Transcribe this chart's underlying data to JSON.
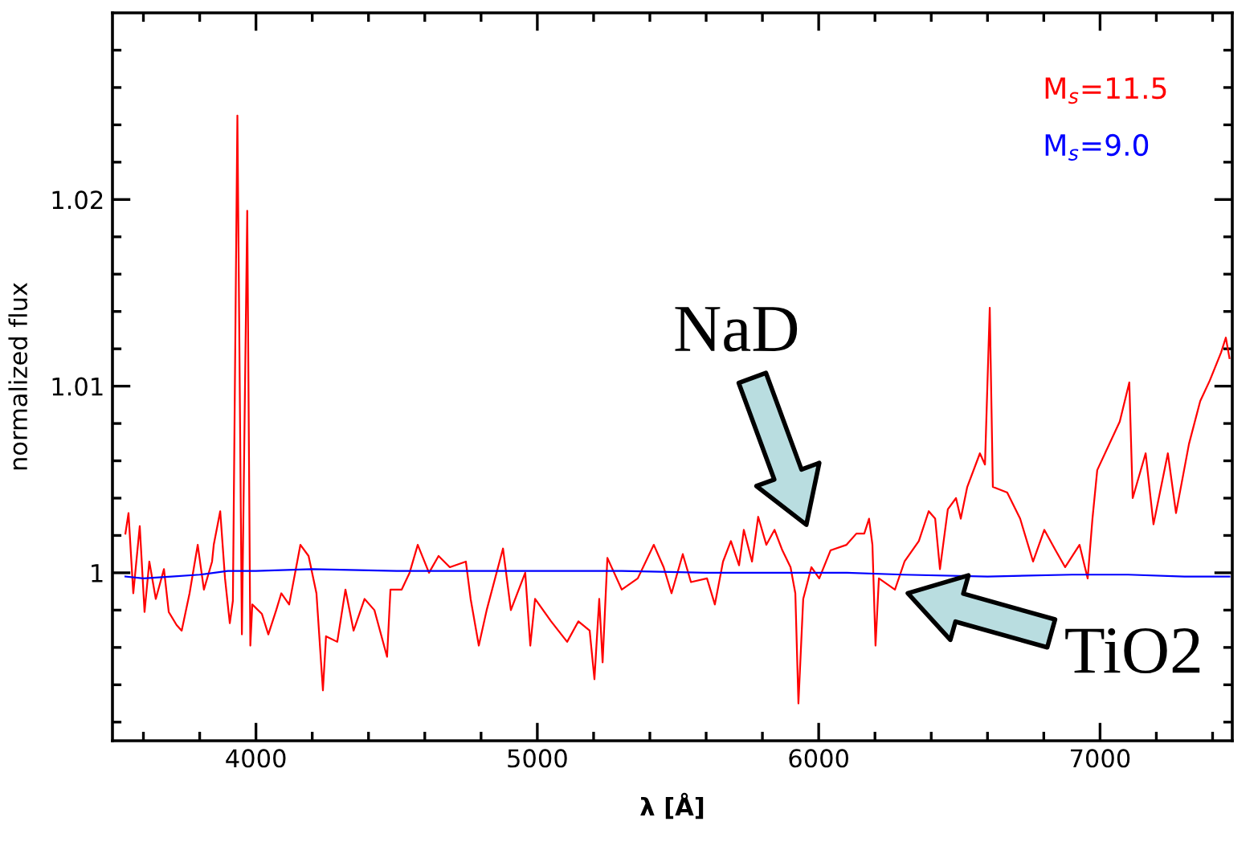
{
  "chart_data": {
    "type": "line",
    "xlabel": "λ [Å]",
    "ylabel": "normalized flux",
    "xlim": [
      3490,
      7470
    ],
    "ylim": [
      0.991,
      1.03
    ],
    "xticks": [
      {
        "value": 3600,
        "label": null
      },
      {
        "value": 3800,
        "label": null
      },
      4000,
      {
        "value": 4200,
        "label": null
      },
      {
        "value": 4400,
        "label": null
      },
      {
        "value": 4600,
        "label": null
      },
      {
        "value": 4800,
        "label": null
      },
      5000,
      {
        "value": 5200,
        "label": null
      },
      {
        "value": 5400,
        "label": null
      },
      {
        "value": 5600,
        "label": null
      },
      {
        "value": 5800,
        "label": null
      },
      6000,
      {
        "value": 6200,
        "label": null
      },
      {
        "value": 6400,
        "label": null
      },
      {
        "value": 6600,
        "label": null
      },
      {
        "value": 6800,
        "label": null
      },
      7000,
      {
        "value": 7200,
        "label": null
      },
      {
        "value": 7400,
        "label": null
      }
    ],
    "yticks": [
      {
        "value": 0.992,
        "label": null
      },
      {
        "value": 0.994,
        "label": null
      },
      {
        "value": 0.996,
        "label": null
      },
      {
        "value": 0.998,
        "label": null
      },
      1,
      {
        "value": 1.002,
        "label": null
      },
      {
        "value": 1.004,
        "label": null
      },
      {
        "value": 1.006,
        "label": null
      },
      {
        "value": 1.008,
        "label": null
      },
      1.01,
      {
        "value": 1.012,
        "label": null
      },
      {
        "value": 1.014,
        "label": null
      },
      {
        "value": 1.016,
        "label": null
      },
      {
        "value": 1.018,
        "label": null
      },
      1.02,
      {
        "value": 1.022,
        "label": null
      },
      {
        "value": 1.024,
        "label": null
      },
      {
        "value": 1.026,
        "label": null
      },
      {
        "value": 1.028,
        "label": null
      }
    ],
    "grid": false,
    "legend": "top right",
    "marker": "none",
    "line_style": "solid",
    "series": [
      {
        "name": "M$_{s}$=11.5",
        "color": "#ff0000",
        "x": [
          3536,
          3547,
          3564,
          3587,
          3604,
          3621,
          3644,
          3673,
          3690,
          3718,
          3736,
          3764,
          3793,
          3815,
          3844,
          3850,
          3873,
          3890,
          3907,
          3918,
          3934,
          3950,
          3969,
          3980,
          3987,
          4021,
          4044,
          4072,
          4090,
          4118,
          4158,
          4187,
          4215,
          4238,
          4249,
          4289,
          4318,
          4347,
          4386,
          4421,
          4466,
          4478,
          4518,
          4546,
          4575,
          4615,
          4649,
          4689,
          4746,
          4763,
          4792,
          4820,
          4878,
          4906,
          4957,
          4975,
          4992,
          5049,
          5106,
          5146,
          5186,
          5203,
          5220,
          5232,
          5249,
          5300,
          5357,
          5414,
          5449,
          5477,
          5517,
          5546,
          5603,
          5631,
          5660,
          5688,
          5717,
          5734,
          5763,
          5785,
          5814,
          5843,
          5871,
          5900,
          5917,
          5928,
          5945,
          5974,
          6002,
          6042,
          6099,
          6134,
          6162,
          6179,
          6191,
          6202,
          6214,
          6271,
          6305,
          6356,
          6391,
          6414,
          6431,
          6459,
          6488,
          6505,
          6528,
          6573,
          6591,
          6608,
          6619,
          6670,
          6716,
          6762,
          6802,
          6842,
          6876,
          6927,
          6956,
          6973,
          6990,
          7070,
          7104,
          7116,
          7162,
          7190,
          7241,
          7270,
          7316,
          7356,
          7390,
          7430,
          7447,
          7460
        ],
        "values": [
          1.0021,
          1.0032,
          0.9989,
          1.0025,
          0.9979,
          1.0006,
          0.9986,
          1.0002,
          0.9979,
          0.9972,
          0.9969,
          0.9989,
          1.0015,
          0.9991,
          1.0006,
          1.0015,
          1.0033,
          0.9997,
          0.9973,
          0.9985,
          1.0245,
          0.9967,
          1.0194,
          0.9961,
          0.9983,
          0.9978,
          0.9967,
          0.998,
          0.9989,
          0.9983,
          1.0015,
          1.0009,
          0.9989,
          0.9937,
          0.9966,
          0.9963,
          0.9991,
          0.9969,
          0.9986,
          0.998,
          0.9955,
          0.9991,
          0.9991,
          1.0,
          1.0015,
          1.0,
          1.0009,
          1.0003,
          1.0006,
          0.9986,
          0.9961,
          0.998,
          1.0013,
          0.998,
          1.0,
          0.9961,
          0.9986,
          0.9974,
          0.9963,
          0.9974,
          0.9969,
          0.9943,
          0.9986,
          0.9952,
          1.0008,
          0.9991,
          0.9997,
          1.0015,
          1.0003,
          0.9989,
          1.001,
          0.9995,
          0.9997,
          0.9983,
          1.0006,
          1.0017,
          1.0004,
          1.0023,
          1.0006,
          1.003,
          1.0015,
          1.0023,
          1.0012,
          1.0003,
          0.9989,
          0.993,
          0.9986,
          1.0003,
          0.9997,
          1.0012,
          1.0015,
          1.0021,
          1.0021,
          1.0029,
          1.0015,
          0.9961,
          0.9997,
          0.9991,
          1.0006,
          1.0017,
          1.0033,
          1.0029,
          1.0002,
          1.0034,
          1.004,
          1.0029,
          1.0046,
          1.0064,
          1.0058,
          1.0142,
          1.0046,
          1.0043,
          1.0029,
          1.0006,
          1.0023,
          1.0012,
          1.0003,
          1.0015,
          0.9997,
          1.0029,
          1.0055,
          1.0081,
          1.0102,
          1.004,
          1.0064,
          1.0026,
          1.0064,
          1.0032,
          1.0069,
          1.0092,
          1.0103,
          1.0118,
          1.0126,
          1.0115
        ]
      },
      {
        "name": "M$_{s}$=9.0",
        "color": "#0000ff",
        "x": [
          3536,
          3600,
          3700,
          3800,
          3900,
          4000,
          4200,
          4500,
          4800,
          5000,
          5300,
          5600,
          5900,
          6100,
          6300,
          6600,
          6900,
          7100,
          7300,
          7460
        ],
        "values": [
          0.9998,
          0.9997,
          0.9998,
          0.9999,
          1.0001,
          1.0001,
          1.0002,
          1.0001,
          1.0001,
          1.0001,
          1.0001,
          1.0,
          1.0,
          1.0,
          0.9999,
          0.9998,
          0.9999,
          0.9999,
          0.9998,
          0.9998
        ]
      }
    ],
    "annotations": [
      "NaD",
      {
        "text": "TiO2",
        "x": 6271,
        "y": 0.9991
      }
    ]
  }
}
